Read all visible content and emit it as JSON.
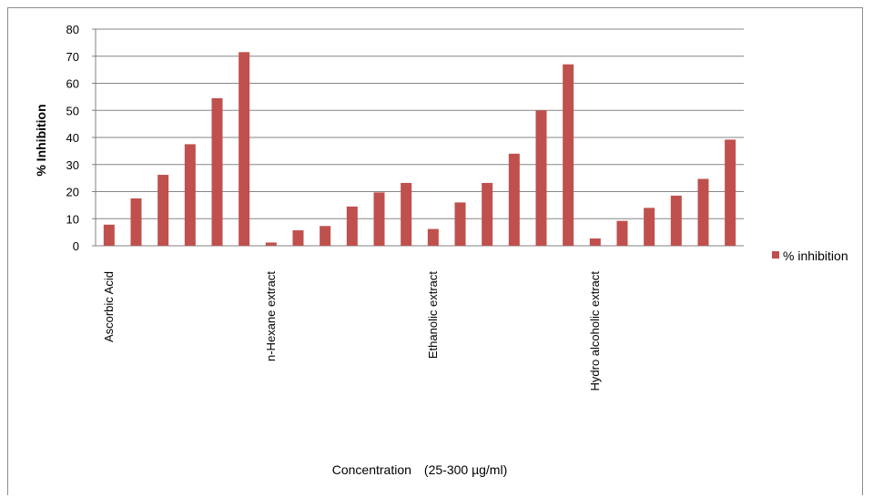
{
  "chart_data": {
    "type": "bar",
    "ylabel": "% Inhibition",
    "xlabel": "Concentration",
    "xlabel_unit": "(25-300 µg/ml)",
    "ylim": [
      0,
      80
    ],
    "yticks": [
      0,
      10,
      20,
      30,
      40,
      50,
      60,
      70,
      80
    ],
    "grid": true,
    "legend_position": "right",
    "groups": [
      "Ascorbic  Acid",
      "n-Hexane extract",
      "Ethanolic extract",
      "Hydro alcoholic extract"
    ],
    "series": [
      {
        "name": "% inhibition",
        "color": "#c0504d",
        "values": [
          7.8,
          17.5,
          26.2,
          37.5,
          54.5,
          71.5,
          1.2,
          5.7,
          7.3,
          14.5,
          19.7,
          23.2,
          6.2,
          16.0,
          23.2,
          34.0,
          50.0,
          67.0,
          2.7,
          9.2,
          14.0,
          18.5,
          24.7,
          39.2
        ]
      }
    ]
  }
}
